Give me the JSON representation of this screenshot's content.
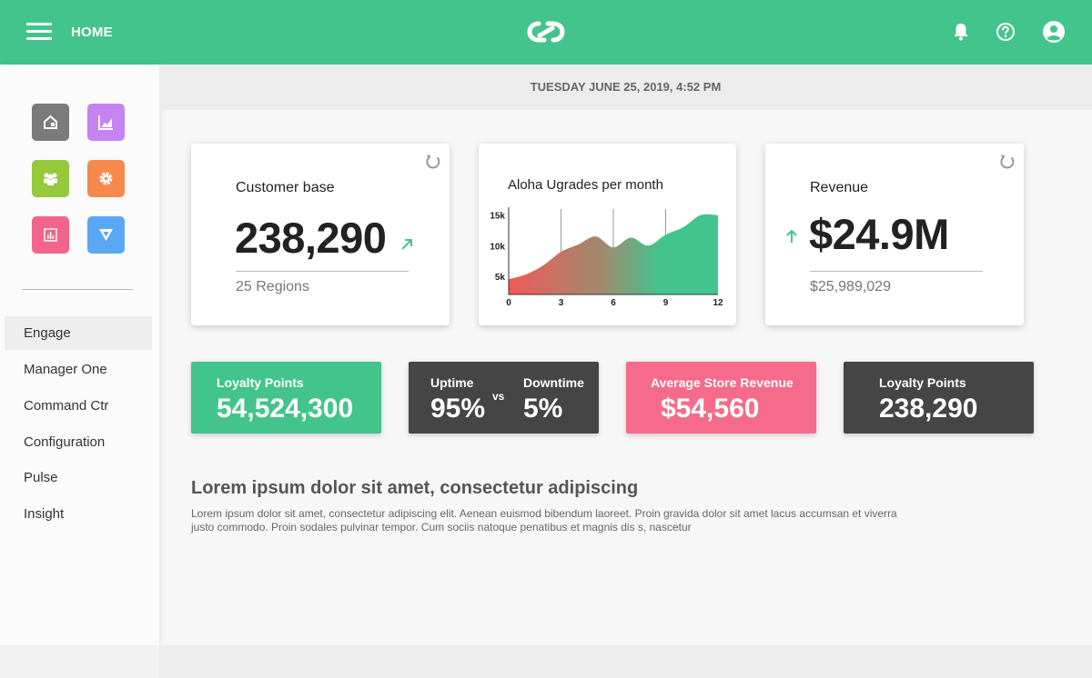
{
  "header": {
    "home_label": "HOME",
    "icons": [
      "menu-icon",
      "logo-icon",
      "bell-icon",
      "help-icon",
      "user-icon"
    ]
  },
  "sidebar": {
    "apps": [
      {
        "name": "home-app",
        "color": "#7b7b7b"
      },
      {
        "name": "analytics-app",
        "color": "#c683f2"
      },
      {
        "name": "people-app",
        "color": "#97c93d"
      },
      {
        "name": "settings-app",
        "color": "#f7894d"
      },
      {
        "name": "reports-app",
        "color": "#f2648b"
      },
      {
        "name": "filter-app",
        "color": "#5aa8f5"
      }
    ],
    "items": [
      {
        "label": "Engage",
        "active": true
      },
      {
        "label": "Manager One"
      },
      {
        "label": "Command Ctr"
      },
      {
        "label": "Configuration"
      },
      {
        "label": "Pulse"
      },
      {
        "label": "Insight"
      }
    ]
  },
  "date_text": "TUESDAY JUNE 25, 2019, 4:52 PM",
  "cards": {
    "customer": {
      "title": "Customer base",
      "value": "238,290",
      "sub": "25 Regions"
    },
    "upgrades": {
      "title": "Aloha Ugrades per month"
    },
    "revenue": {
      "title": "Revenue",
      "value": "$24.9M",
      "sub": "$25,989,029"
    }
  },
  "tiles": {
    "loyalty1": {
      "label": "Loyalty Points",
      "value": "54,524,300",
      "color": "#43c48d"
    },
    "uptime": {
      "label": "Uptime",
      "value": "95%",
      "vs": "vs",
      "label2": "Downtime",
      "value2": "5%",
      "color": "#454545"
    },
    "store": {
      "label": "Average Store Revenue",
      "value": "$54,560",
      "color": "#f76b8a"
    },
    "loyalty2": {
      "label": "Loyalty Points",
      "value": "238,290",
      "color": "#454545"
    }
  },
  "lorem": {
    "title": "Lorem ipsum dolor sit amet, consectetur adipiscing",
    "body": "Lorem ipsum dolor sit amet, consectetur adipiscing elit. Aenean euismod bibendum laoreet. Proin gravida dolor sit amet lacus accumsan et viverra justo commodo. Proin sodales pulvinar tempor. Cum sociis natoque penatibus et magnis dis s, nascetur"
  },
  "chart_data": {
    "type": "area",
    "title": "Aloha Ugrades per month",
    "x": [
      0,
      1,
      2,
      3,
      4,
      5,
      6,
      7,
      8,
      9,
      10,
      11,
      12
    ],
    "values": [
      4500,
      5300,
      6800,
      9000,
      10200,
      11500,
      9700,
      11300,
      10000,
      11800,
      13000,
      15000,
      15000
    ],
    "x_ticks": [
      "0",
      "3",
      "6",
      "9",
      "12"
    ],
    "y_ticks": [
      "5k",
      "10k",
      "15k"
    ],
    "xlim": [
      0,
      12
    ],
    "ylim": [
      2000,
      16000
    ],
    "gradient": [
      "#f05a5a",
      "#43c48d"
    ]
  }
}
